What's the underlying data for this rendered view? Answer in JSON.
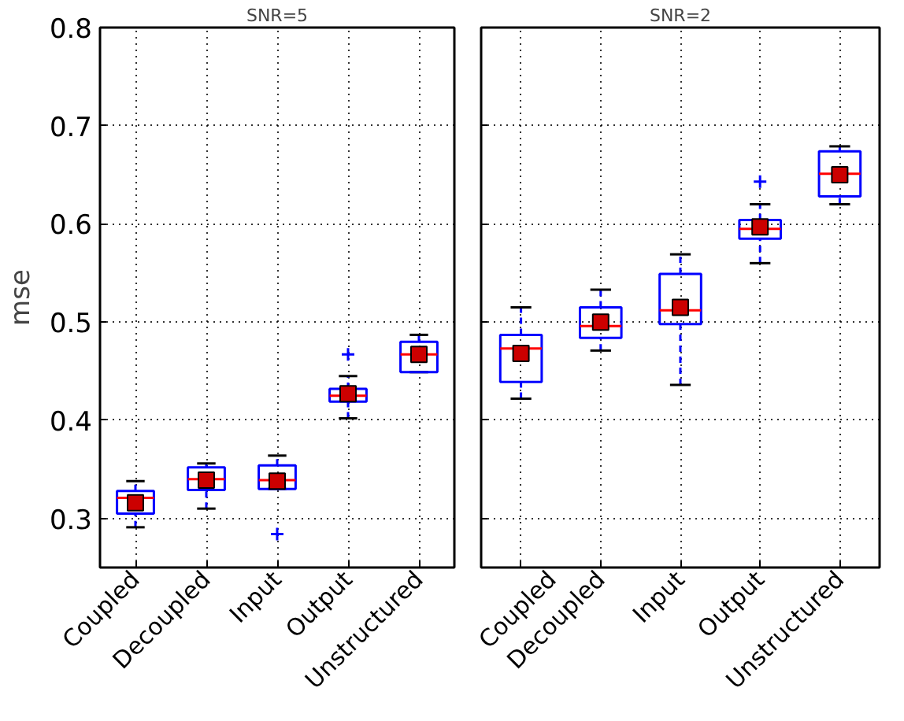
{
  "chart_data": [
    {
      "type": "box",
      "title": "SNR=5",
      "ylabel": "mse",
      "categories": [
        "Coupled",
        "Decoupled",
        "Input",
        "Output",
        "Unstructured"
      ],
      "color": "#0000ff",
      "marker": "square",
      "grid": true,
      "ylim": [
        0.25,
        0.8
      ],
      "yticks": [
        0.3,
        0.4,
        0.5,
        0.6,
        0.7,
        0.8
      ],
      "boxes": [
        {
          "low": 0.291,
          "q1": 0.305,
          "median": 0.321,
          "q3": 0.328,
          "high": 0.338,
          "mean": 0.316
        },
        {
          "low": 0.31,
          "q1": 0.329,
          "median": 0.34,
          "q3": 0.352,
          "high": 0.356,
          "mean": 0.339
        },
        {
          "low": 0.33,
          "q1": 0.33,
          "median": 0.339,
          "q3": 0.354,
          "high": 0.364,
          "mean": 0.338,
          "outliers": [
            0.284
          ]
        },
        {
          "low": 0.402,
          "q1": 0.419,
          "median": 0.425,
          "q3": 0.432,
          "high": 0.445,
          "mean": 0.427,
          "outliers": [
            0.467
          ]
        },
        {
          "low": 0.449,
          "q1": 0.449,
          "median": 0.467,
          "q3": 0.48,
          "high": 0.487,
          "mean": 0.467
        }
      ]
    },
    {
      "type": "box",
      "title": "SNR=2",
      "categories": [
        "Coupled",
        "Decoupled",
        "Input",
        "Output",
        "Unstructured"
      ],
      "color": "#0000ff",
      "marker": "square",
      "grid": true,
      "ylim": [
        0.25,
        0.8
      ],
      "yticks": [
        0.3,
        0.4,
        0.5,
        0.6,
        0.7,
        0.8
      ],
      "tick_labels": "x",
      "boxes": [
        {
          "low": 0.422,
          "q1": 0.439,
          "median": 0.473,
          "q3": 0.487,
          "high": 0.515,
          "mean": 0.468
        },
        {
          "low": 0.471,
          "q1": 0.484,
          "median": 0.496,
          "q3": 0.515,
          "high": 0.533,
          "mean": 0.5
        },
        {
          "low": 0.436,
          "q1": 0.498,
          "median": 0.512,
          "q3": 0.549,
          "high": 0.569,
          "mean": 0.515
        },
        {
          "low": 0.56,
          "q1": 0.585,
          "median": 0.595,
          "q3": 0.604,
          "high": 0.62,
          "mean": 0.597,
          "outliers": [
            0.643
          ]
        },
        {
          "low": 0.62,
          "q1": 0.628,
          "median": 0.651,
          "q3": 0.674,
          "high": 0.679,
          "mean": 0.65
        }
      ]
    }
  ]
}
